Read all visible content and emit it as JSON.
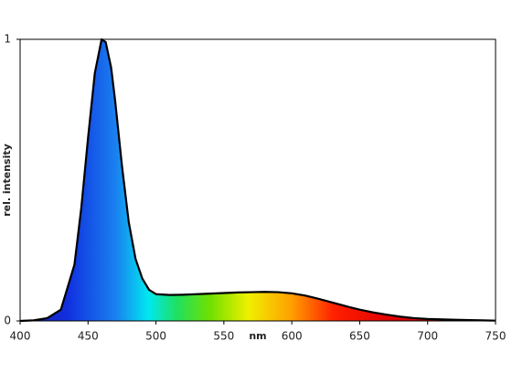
{
  "chart_data": {
    "type": "area",
    "xlabel": "nm",
    "ylabel": "rel. intensity",
    "x": [
      400,
      410,
      420,
      430,
      440,
      445,
      450,
      455,
      460,
      463,
      467,
      470,
      475,
      480,
      485,
      490,
      495,
      500,
      510,
      520,
      530,
      540,
      550,
      560,
      570,
      580,
      590,
      600,
      610,
      620,
      630,
      640,
      650,
      660,
      670,
      680,
      690,
      700,
      720,
      740,
      750
    ],
    "values": [
      0,
      0.002,
      0.01,
      0.04,
      0.2,
      0.4,
      0.65,
      0.88,
      1.0,
      0.99,
      0.9,
      0.78,
      0.55,
      0.35,
      0.22,
      0.15,
      0.11,
      0.095,
      0.092,
      0.093,
      0.095,
      0.097,
      0.099,
      0.101,
      0.102,
      0.103,
      0.102,
      0.098,
      0.09,
      0.078,
      0.065,
      0.052,
      0.04,
      0.03,
      0.022,
      0.015,
      0.01,
      0.007,
      0.004,
      0.002,
      0.001
    ],
    "color": "#000000",
    "xlim": [
      400,
      750
    ],
    "xticks": [
      400,
      450,
      500,
      550,
      600,
      650,
      700,
      750
    ],
    "ylim": [
      0,
      1
    ],
    "yticks": [
      0,
      1
    ],
    "grid": false
  }
}
